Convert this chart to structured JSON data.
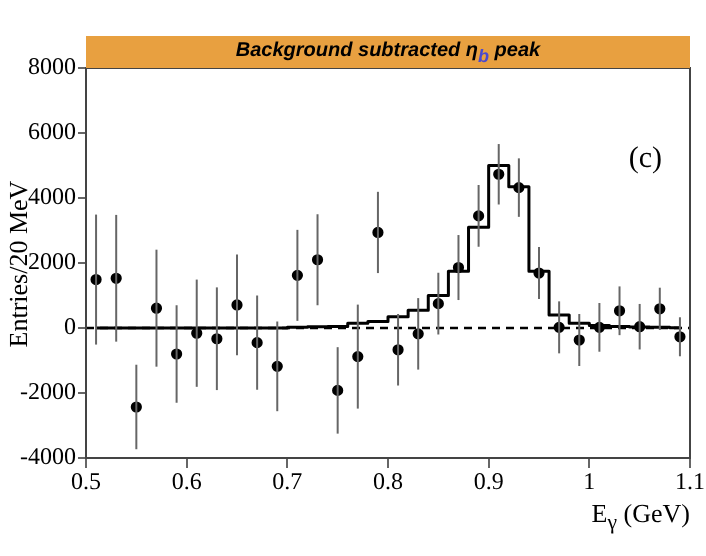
{
  "chart_data": {
    "type": "scatter",
    "title": "Background subtracted η$_{b}$ peak",
    "xlabel": "E$_{γ}$ (GeV)",
    "ylabel": "Entries/20 MeV",
    "annotations": [
      "(c)"
    ],
    "xlim": [
      0.5,
      1.1
    ],
    "xticks": [
      0.5,
      0.6,
      0.7,
      0.8,
      0.9,
      1,
      1.1
    ],
    "ylim": [
      -4000,
      8000
    ],
    "yticks": [
      -4000,
      -2000,
      0,
      2000,
      4000,
      6000,
      8000
    ],
    "grid": false,
    "legend": false,
    "marker": "circle",
    "ref_lines": [
      {
        "axis": "y",
        "value": 0,
        "line_style": "dashed",
        "color": "#000000"
      }
    ],
    "series": [
      {
        "type": "scatter",
        "color": "#000000",
        "x": [
          0.51,
          0.53,
          0.55,
          0.57,
          0.59,
          0.61,
          0.63,
          0.65,
          0.67,
          0.69,
          0.71,
          0.73,
          0.75,
          0.77,
          0.79,
          0.81,
          0.83,
          0.85,
          0.87,
          0.89,
          0.91,
          0.93,
          0.95,
          0.97,
          0.99,
          1.01,
          1.03,
          1.05,
          1.07,
          1.09
        ],
        "values": [
          1490,
          1530,
          -2430,
          610,
          -800,
          -160,
          -330,
          710,
          -450,
          -1180,
          1620,
          2100,
          -1920,
          -880,
          2940,
          -670,
          -180,
          750,
          1860,
          3450,
          4730,
          4320,
          1690,
          20,
          -370,
          20,
          530,
          40,
          590,
          -270
        ],
        "errors": [
          2000,
          1950,
          1300,
          1800,
          1500,
          1650,
          1580,
          1550,
          1450,
          1380,
          1400,
          1400,
          1330,
          1600,
          1250,
          1100,
          1100,
          950,
          1000,
          950,
          930,
          900,
          800,
          800,
          800,
          750,
          750,
          700,
          650,
          600
        ]
      },
      {
        "type": "step",
        "color": "#000000",
        "marker": "none",
        "x": [
          0.51,
          0.53,
          0.55,
          0.57,
          0.59,
          0.61,
          0.63,
          0.65,
          0.67,
          0.69,
          0.71,
          0.73,
          0.75,
          0.77,
          0.79,
          0.81,
          0.83,
          0.85,
          0.87,
          0.89,
          0.91,
          0.93,
          0.95,
          0.97,
          0.99,
          1.01,
          1.03,
          1.05,
          1.07,
          1.09
        ],
        "values": [
          0,
          0,
          0,
          0,
          0,
          0,
          0,
          0,
          0,
          0,
          20,
          40,
          50,
          150,
          200,
          350,
          550,
          1000,
          1750,
          3100,
          5000,
          4350,
          1750,
          400,
          150,
          80,
          50,
          30,
          20,
          10
        ]
      }
    ]
  }
}
